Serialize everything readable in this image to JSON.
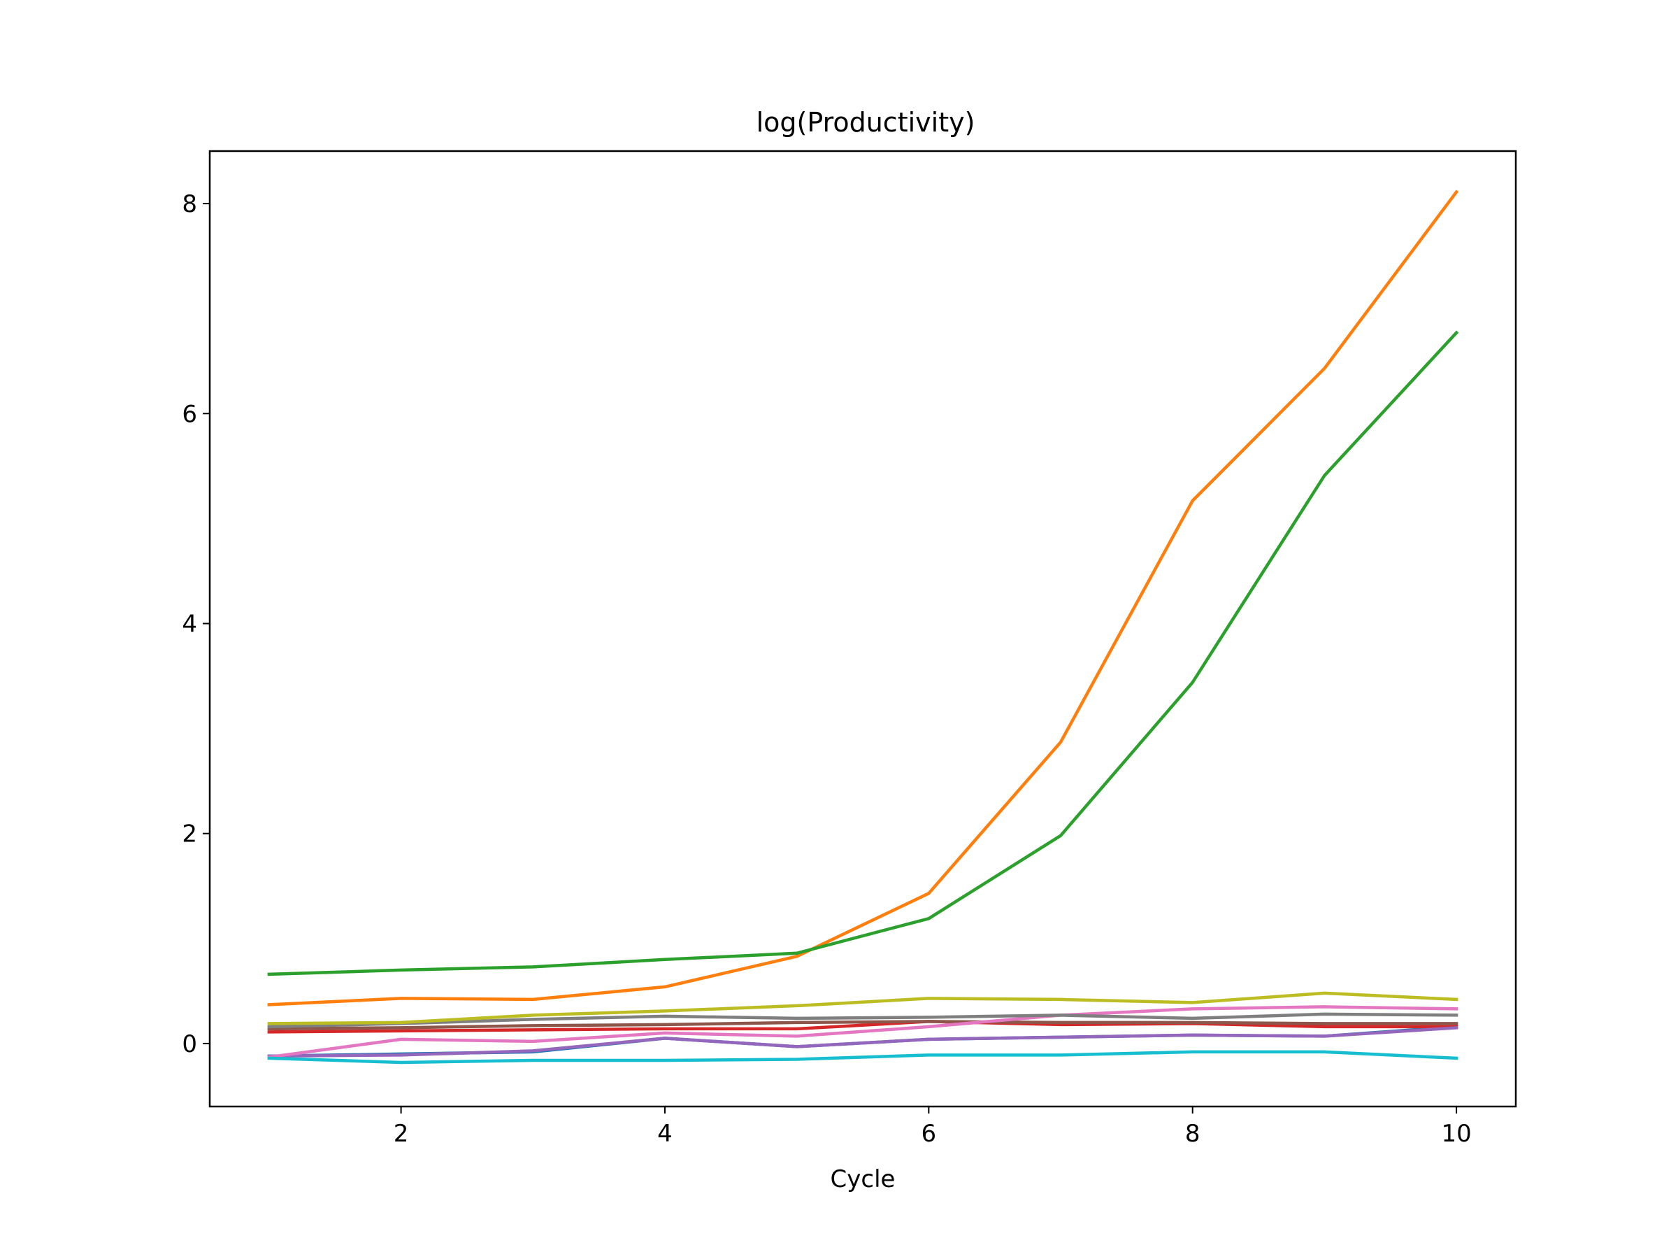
{
  "chart_data": {
    "type": "line",
    "title": "log(Productivity)",
    "xlabel": "Cycle",
    "ylabel": "",
    "x": [
      1,
      2,
      3,
      4,
      5,
      6,
      7,
      8,
      9,
      10
    ],
    "xlim": [
      0.55,
      10.45
    ],
    "ylim": [
      -0.6,
      8.5
    ],
    "xticks": [
      2,
      4,
      6,
      8,
      10
    ],
    "yticks": [
      0,
      2,
      4,
      6,
      8
    ],
    "grid": false,
    "legend": "none",
    "series": [
      {
        "color": "#1f77b4",
        "values": [
          -0.12,
          -0.1,
          -0.08,
          0.05,
          -0.03,
          0.04,
          0.06,
          0.08,
          0.07,
          0.16
        ]
      },
      {
        "color": "#ff7f0e",
        "values": [
          0.37,
          0.43,
          0.42,
          0.54,
          0.83,
          1.43,
          2.87,
          5.17,
          6.43,
          8.11
        ]
      },
      {
        "color": "#2ca02c",
        "values": [
          0.66,
          0.7,
          0.73,
          0.8,
          0.86,
          1.19,
          1.98,
          3.44,
          5.41,
          6.77
        ]
      },
      {
        "color": "#d62728",
        "values": [
          0.11,
          0.12,
          0.13,
          0.14,
          0.14,
          0.21,
          0.18,
          0.19,
          0.16,
          0.16
        ]
      },
      {
        "color": "#9467bd",
        "values": [
          -0.12,
          -0.11,
          -0.07,
          0.05,
          -0.03,
          0.04,
          0.06,
          0.08,
          0.07,
          0.15
        ]
      },
      {
        "color": "#8c564b",
        "values": [
          0.14,
          0.15,
          0.17,
          0.18,
          0.2,
          0.21,
          0.2,
          0.2,
          0.19,
          0.19
        ]
      },
      {
        "color": "#e377c2",
        "values": [
          -0.13,
          0.04,
          0.02,
          0.1,
          0.07,
          0.16,
          0.27,
          0.33,
          0.35,
          0.33
        ]
      },
      {
        "color": "#7f7f7f",
        "values": [
          0.16,
          0.19,
          0.23,
          0.26,
          0.24,
          0.25,
          0.27,
          0.24,
          0.28,
          0.27
        ]
      },
      {
        "color": "#bcbd22",
        "values": [
          0.19,
          0.2,
          0.27,
          0.31,
          0.36,
          0.43,
          0.42,
          0.39,
          0.48,
          0.42
        ]
      },
      {
        "color": "#17becf",
        "values": [
          -0.14,
          -0.18,
          -0.16,
          -0.16,
          -0.15,
          -0.11,
          -0.11,
          -0.08,
          -0.08,
          -0.14
        ]
      }
    ]
  }
}
